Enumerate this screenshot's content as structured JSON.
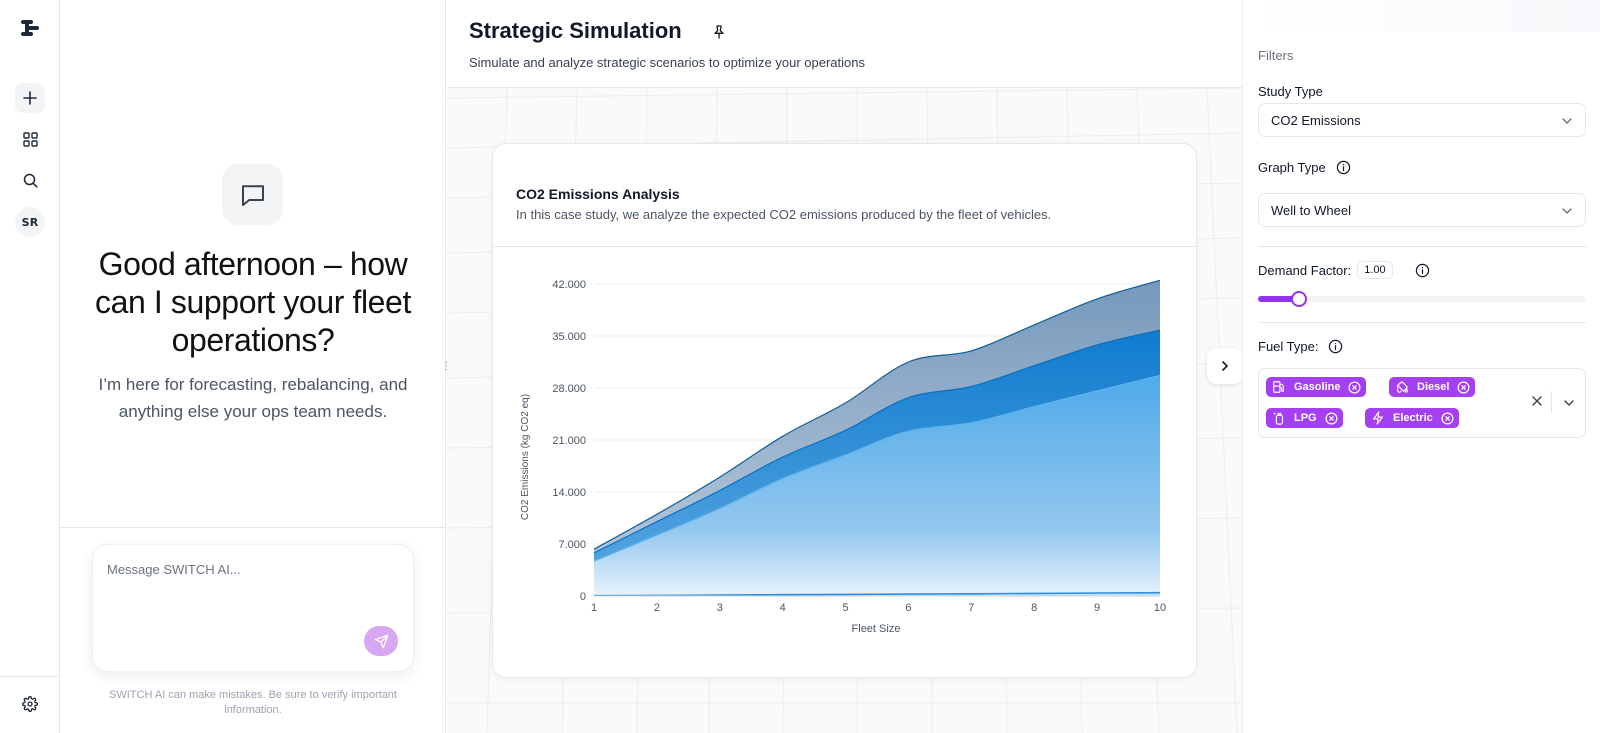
{
  "rail": {
    "logo_icon": "switch-logo",
    "items": [
      {
        "name": "new-chat",
        "icon": "plus-icon"
      },
      {
        "name": "apps",
        "icon": "grid-icon"
      },
      {
        "name": "search",
        "icon": "search-icon"
      }
    ],
    "avatar_initials": "SR",
    "settings_icon": "gear-icon"
  },
  "chat": {
    "greeting": "Good afternoon – how can I support your fleet operations?",
    "subtitle": "I’m here for forecasting, rebalancing, and anything else your ops team needs.",
    "input_placeholder": "Message SWITCH AI...",
    "disclaimer": "SWITCH AI can make mistakes. Be sure to verify important information.",
    "send_color": "#d8a7f2"
  },
  "header": {
    "title": "Strategic Simulation",
    "subtitle": "Simulate and analyze strategic scenarios to optimize your operations"
  },
  "card": {
    "title": "CO2 Emissions Analysis",
    "subtitle": "In this case study, we analyze the expected CO2 emissions produced by the fleet of vehicles."
  },
  "chart_data": {
    "type": "area",
    "xlabel": "Fleet Size",
    "ylabel": "CO2 Emissions (kg CO2 eq)",
    "x": [
      1,
      2,
      3,
      4,
      5,
      6,
      7,
      8,
      9,
      10
    ],
    "ylim": [
      0,
      42000
    ],
    "yticks": [
      0,
      7000,
      14000,
      21000,
      28000,
      35000,
      42000
    ],
    "ytick_labels": [
      "0",
      "7.000",
      "14.000",
      "21.000",
      "28.000",
      "35.000",
      "42.000"
    ],
    "grid": "horizontal",
    "stacked": false,
    "series": [
      {
        "values": [
          6300,
          11000,
          16000,
          21500,
          26000,
          31500,
          33000,
          36500,
          40000,
          42500
        ],
        "color": "#7c9cbd"
      },
      {
        "values": [
          5800,
          10000,
          14200,
          18700,
          22300,
          26700,
          28200,
          31000,
          33800,
          35800
        ],
        "color": "#1d87d6"
      },
      {
        "values": [
          4700,
          8200,
          11800,
          15800,
          19000,
          22200,
          23300,
          25500,
          27600,
          29700
        ],
        "color": "#5ab3ee"
      },
      {
        "values": [
          50,
          80,
          120,
          180,
          220,
          260,
          300,
          350,
          400,
          450
        ],
        "color": "#3b9be5"
      }
    ]
  },
  "filters": {
    "title": "Filters",
    "study_type": {
      "label": "Study Type",
      "value": "CO2 Emissions"
    },
    "graph_type": {
      "label": "Graph Type",
      "value": "Well to Wheel"
    },
    "demand_factor": {
      "label": "Demand Factor:",
      "value": "1.00",
      "level": 0.1
    },
    "fuel_type": {
      "label": "Fuel Type:",
      "chips": [
        {
          "label": "Gasoline",
          "icon": "fuel-pump-icon"
        },
        {
          "label": "Diesel",
          "icon": "fuel-can-icon"
        },
        {
          "label": "LPG",
          "icon": "gas-cylinder-icon"
        },
        {
          "label": "Electric",
          "icon": "lightning-icon"
        }
      ]
    },
    "accent": "#a43ff2"
  }
}
